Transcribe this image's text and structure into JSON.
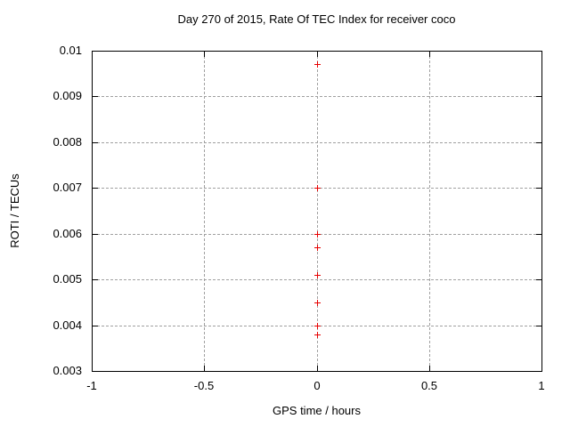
{
  "chart_data": {
    "type": "scatter",
    "title": "Day 270 of 2015, Rate Of TEC Index for receiver coco",
    "xlabel": "GPS time / hours",
    "ylabel": "ROTI / TECUs",
    "xlim": [
      -1,
      1
    ],
    "ylim": [
      0.003,
      0.01
    ],
    "grid": true,
    "legend": "none",
    "x_ticks": [
      {
        "value": -1,
        "label": "-1"
      },
      {
        "value": -0.5,
        "label": "-0.5"
      },
      {
        "value": 0,
        "label": "0"
      },
      {
        "value": 0.5,
        "label": "0.5"
      },
      {
        "value": 1,
        "label": "1"
      }
    ],
    "y_ticks": [
      {
        "value": 0.003,
        "label": "0.003"
      },
      {
        "value": 0.004,
        "label": "0.004"
      },
      {
        "value": 0.005,
        "label": "0.005"
      },
      {
        "value": 0.006,
        "label": "0.006"
      },
      {
        "value": 0.007,
        "label": "0.007"
      },
      {
        "value": 0.008,
        "label": "0.008"
      },
      {
        "value": 0.009,
        "label": "0.009"
      },
      {
        "value": 0.01,
        "label": "0.01"
      }
    ],
    "series": [
      {
        "name": "ROTI",
        "marker": "plus",
        "color": "#e60000",
        "points": [
          {
            "x": 0,
            "y": 0.0097
          },
          {
            "x": 0,
            "y": 0.007
          },
          {
            "x": 0,
            "y": 0.006
          },
          {
            "x": 0,
            "y": 0.0057
          },
          {
            "x": 0,
            "y": 0.0051
          },
          {
            "x": 0,
            "y": 0.0045
          },
          {
            "x": 0,
            "y": 0.004
          },
          {
            "x": 0,
            "y": 0.0038
          }
        ]
      }
    ],
    "colors": {
      "background": "#ffffff",
      "axis": "#000000",
      "text": "#000000",
      "grid": "#a0a0a0",
      "marker": "#e60000"
    }
  }
}
